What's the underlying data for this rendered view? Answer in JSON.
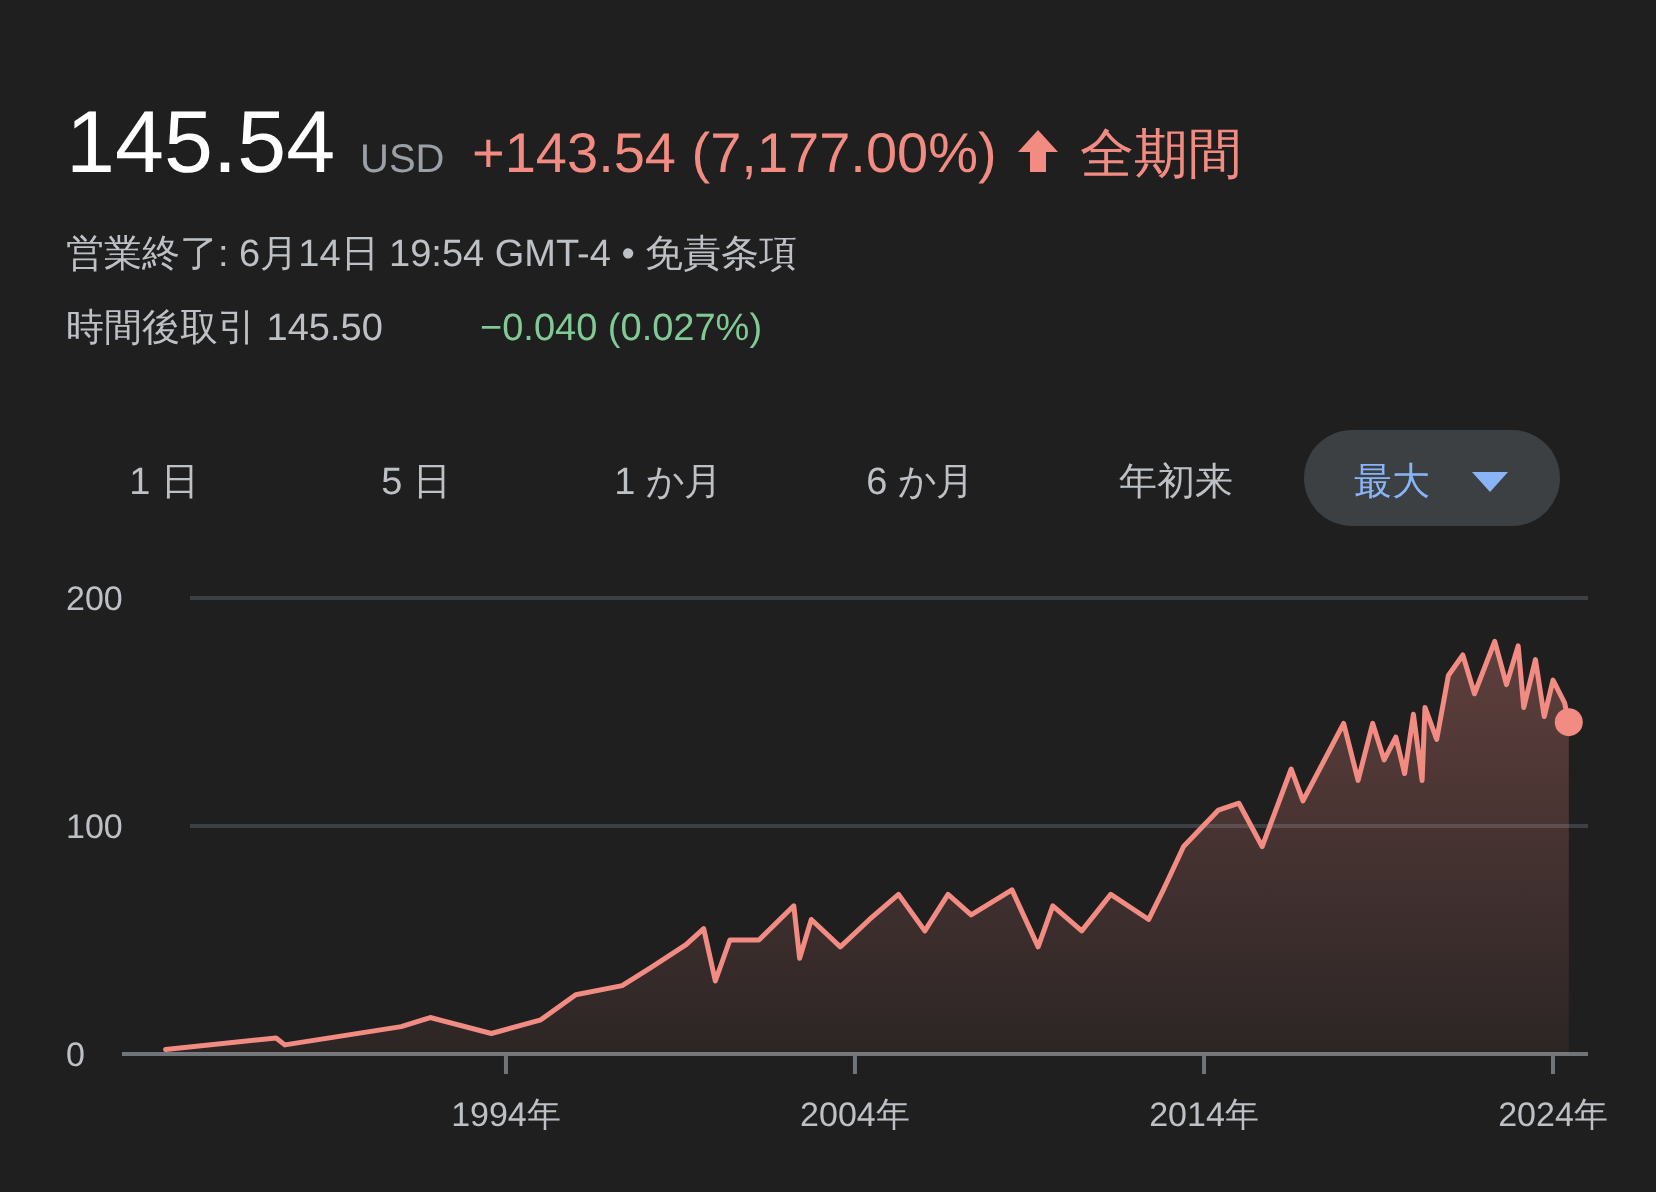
{
  "chart_data": {
    "type": "area",
    "title": "145.54",
    "annotations": [
      "USD",
      "+143.54 (7,177.00%)",
      "全期間",
      "営業終了: 6月14日 19:54 GMT-4 • 免責条項",
      "時間後取引 145.50",
      "−0.040 (0.027%)",
      "1 日",
      "5 日",
      "1 か月",
      "6 か月",
      "年初来",
      "最大"
    ],
    "series": [
      {
        "color": "#f28b82",
        "x": [
          "1984-04",
          "1987-06",
          "1987-09",
          "1991-01",
          "1991-11",
          "1993-08",
          "1995-01",
          "1996-01",
          "1997-05",
          "1998-03",
          "1999-03",
          "1999-09",
          "2000-01",
          "2000-06",
          "2001-04",
          "2002-04",
          "2002-06",
          "2002-10",
          "2003-08",
          "2004-06",
          "2005-04",
          "2006-01",
          "2006-09",
          "2007-05",
          "2008-07",
          "2009-04",
          "2009-09",
          "2010-07",
          "2011-05",
          "2012-06",
          "2012-11",
          "2013-06",
          "2014-06",
          "2015-01",
          "2015-09",
          "2016-07",
          "2016-11",
          "2018-01",
          "2018-06",
          "2018-11",
          "2019-03",
          "2019-07",
          "2019-10",
          "2020-01",
          "2020-04",
          "2020-05",
          "2020-09",
          "2021-01",
          "2021-06",
          "2021-10",
          "2022-05",
          "2022-09",
          "2023-01",
          "2023-03",
          "2023-07",
          "2023-10",
          "2024-01",
          "2024-05",
          "2024-06-14"
        ],
        "values": [
          2,
          7,
          4,
          12,
          16,
          9,
          15,
          26,
          30,
          38,
          48,
          55,
          32,
          50,
          50,
          65,
          42,
          59,
          47,
          59,
          70,
          54,
          70,
          61,
          72,
          47,
          65,
          54,
          70,
          59,
          72,
          91,
          107,
          110,
          91,
          125,
          111,
          145,
          120,
          145,
          129,
          139,
          123,
          149,
          120,
          152,
          138,
          166,
          175,
          158,
          181,
          162,
          179,
          152,
          173,
          148,
          164,
          154,
          145.54
        ]
      }
    ],
    "xlim": [
      "1983-01",
      "2025-01"
    ],
    "xticks": [
      {
        "value": "1994",
        "label": "1994年"
      },
      {
        "value": "2004",
        "label": "2004年"
      },
      {
        "value": "2014",
        "label": "2014年"
      },
      {
        "value": "2024",
        "label": "2024年"
      }
    ],
    "ylim": [
      0,
      200
    ],
    "yticks": [
      0,
      100,
      200
    ],
    "grid": "y"
  }
}
